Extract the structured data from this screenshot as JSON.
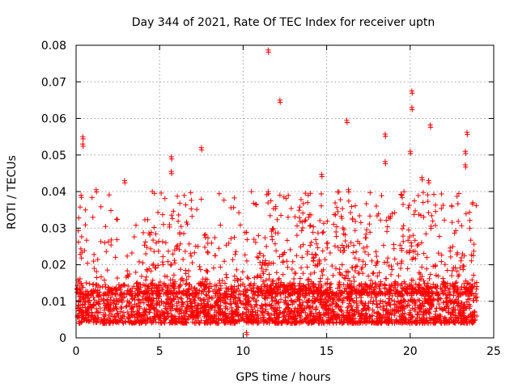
{
  "chart_data": {
    "type": "scatter",
    "title": "Day 344 of 2021, Rate Of TEC Index for receiver uptn",
    "xlabel": "GPS time / hours",
    "ylabel": "ROTI / TECUs",
    "xlim": [
      0,
      25
    ],
    "ylim": [
      0,
      0.08
    ],
    "x_ticks": [
      0,
      5,
      10,
      15,
      20,
      25
    ],
    "y_ticks": [
      0,
      0.01,
      0.02,
      0.03,
      0.04,
      0.05,
      0.06,
      0.07,
      0.08
    ],
    "x_tick_labels": [
      "0",
      "5",
      "10",
      "15",
      "20",
      "25"
    ],
    "y_tick_labels": [
      "0",
      "0.01",
      "0.02",
      "0.03",
      "0.04",
      "0.05",
      "0.06",
      "0.07",
      "0.08"
    ],
    "grid": true,
    "marker": "+",
    "color": "#ff0000",
    "series": [
      {
        "name": "ROTI",
        "description": "dense band of points between ~0.004 and ~0.015 over 0-24 h, with spikes up to ~0.079",
        "notable_points": [
          {
            "x": 11.5,
            "y": 0.0787
          },
          {
            "x": 12.2,
            "y": 0.065
          },
          {
            "x": 20.1,
            "y": 0.0675
          },
          {
            "x": 20.1,
            "y": 0.063
          },
          {
            "x": 16.2,
            "y": 0.0595
          },
          {
            "x": 21.2,
            "y": 0.0582
          },
          {
            "x": 23.4,
            "y": 0.0562
          },
          {
            "x": 18.5,
            "y": 0.0557
          },
          {
            "x": 0.4,
            "y": 0.055
          },
          {
            "x": 0.4,
            "y": 0.053
          },
          {
            "x": 7.5,
            "y": 0.052
          },
          {
            "x": 20.0,
            "y": 0.051
          },
          {
            "x": 23.3,
            "y": 0.051
          },
          {
            "x": 5.7,
            "y": 0.0495
          },
          {
            "x": 18.5,
            "y": 0.0482
          },
          {
            "x": 23.3,
            "y": 0.0473
          },
          {
            "x": 5.7,
            "y": 0.0455
          },
          {
            "x": 14.7,
            "y": 0.0447
          },
          {
            "x": 20.7,
            "y": 0.0438
          },
          {
            "x": 21.1,
            "y": 0.043
          },
          {
            "x": 2.9,
            "y": 0.043
          },
          {
            "x": 1.2,
            "y": 0.0405
          },
          {
            "x": 11.5,
            "y": 0.04
          },
          {
            "x": 16.3,
            "y": 0.0405
          },
          {
            "x": 0.3,
            "y": 0.039
          },
          {
            "x": 19.5,
            "y": 0.039
          },
          {
            "x": 10.2,
            "y": 0.0015
          }
        ]
      }
    ]
  }
}
